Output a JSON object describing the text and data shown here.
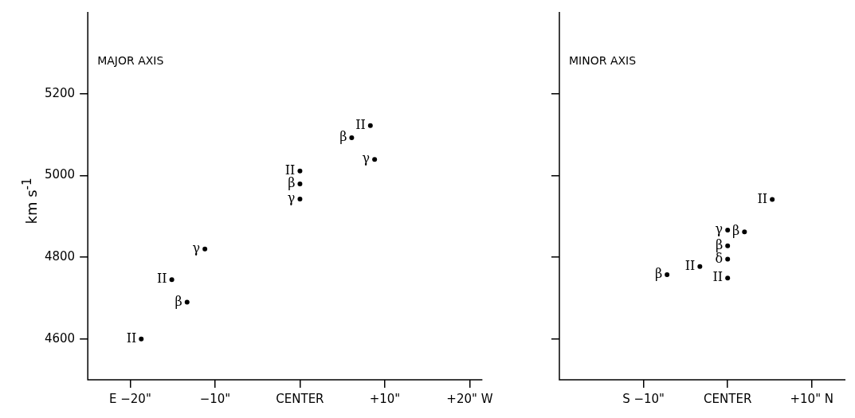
{
  "chart_data": [
    {
      "type": "scatter",
      "title": "MAJOR AXIS",
      "ylabel": "km s$^{-1}$",
      "xlim": [
        -25,
        21.5
      ],
      "ylim": [
        4500,
        5400
      ],
      "xticks": [
        {
          "value": -20,
          "label": "E −20\""
        },
        {
          "value": -10,
          "label": "−10\""
        },
        {
          "value": 0,
          "label": "CENTER"
        },
        {
          "value": 10,
          "label": "+10\""
        },
        {
          "value": 20,
          "label": "+20\" W"
        }
      ],
      "yticks": [
        4600,
        4800,
        5000,
        5200
      ],
      "grid": false,
      "legend": false,
      "series": [
        {
          "name": "II",
          "color": "#000000",
          "x": [
            -18.7,
            -15.1,
            0,
            8.3
          ],
          "values": [
            4600,
            4745,
            5011,
            5122
          ]
        },
        {
          "name": "β",
          "color": "#000000",
          "x": [
            -13.3,
            0,
            6.1
          ],
          "values": [
            4690,
            4979,
            5092
          ]
        },
        {
          "name": "γ",
          "color": "#000000",
          "x": [
            -11.2,
            0,
            8.8
          ],
          "values": [
            4820,
            4942,
            5039
          ]
        }
      ]
    },
    {
      "type": "scatter",
      "title": "MINOR AXIS",
      "xlim": [
        -20,
        14
      ],
      "ylim": [
        4500,
        5400
      ],
      "xticks": [
        {
          "value": -10,
          "label": "S −10\""
        },
        {
          "value": 0,
          "label": "CENTER"
        },
        {
          "value": 10,
          "label": "+10\" N"
        }
      ],
      "yticks": [
        {
          "value": 4600,
          "label": null
        },
        {
          "value": 4800,
          "label": null
        },
        {
          "value": 5000,
          "label": null
        },
        {
          "value": 5200,
          "label": null
        }
      ],
      "tick_labels": "x",
      "grid": false,
      "legend": false,
      "series": [
        {
          "name": "II",
          "color": "#000000",
          "x": [
            -3.3,
            0,
            5.3
          ],
          "values": [
            4777,
            4749,
            4941
          ]
        },
        {
          "name": "β",
          "color": "#000000",
          "x": [
            -7.2,
            0,
            2.0
          ],
          "values": [
            4757,
            4828,
            4862
          ]
        },
        {
          "name": "γ",
          "color": "#000000",
          "x": [
            0
          ],
          "values": [
            4866
          ]
        },
        {
          "name": "δ",
          "color": "#000000",
          "x": [
            0
          ],
          "values": [
            4795
          ]
        }
      ]
    }
  ]
}
